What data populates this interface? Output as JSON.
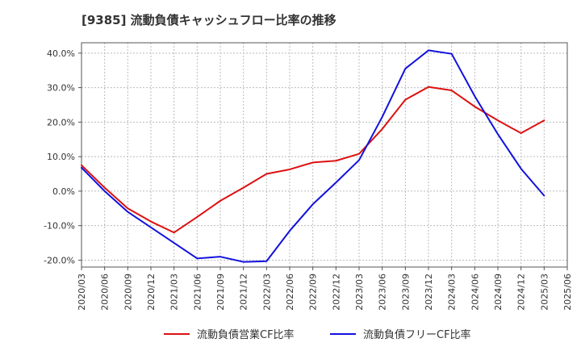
{
  "chart_data": {
    "type": "line",
    "title": "[9385]  流動負債キャッシュフロー比率の推移",
    "xlabel": "",
    "ylabel": "",
    "x": [
      "2020/03",
      "2020/06",
      "2020/09",
      "2020/12",
      "2021/03",
      "2021/06",
      "2021/09",
      "2021/12",
      "2022/03",
      "2022/06",
      "2022/09",
      "2022/12",
      "2023/03",
      "2023/06",
      "2023/09",
      "2023/12",
      "2024/03",
      "2024/06",
      "2024/09",
      "2024/12",
      "2025/03"
    ],
    "x_ticks": [
      "2020/03",
      "2020/06",
      "2020/09",
      "2020/12",
      "2021/03",
      "2021/06",
      "2021/09",
      "2021/12",
      "2022/03",
      "2022/06",
      "2022/09",
      "2022/12",
      "2023/03",
      "2023/06",
      "2023/09",
      "2023/12",
      "2024/03",
      "2024/06",
      "2024/09",
      "2024/12",
      "2025/03",
      "2025/06"
    ],
    "ylim": [
      -22,
      43
    ],
    "y_ticks": [
      -20,
      -10,
      0,
      10,
      20,
      30,
      40
    ],
    "y_tick_labels": [
      "-20.0%",
      "-10.0%",
      "0.0%",
      "10.0%",
      "20.0%",
      "30.0%",
      "40.0%"
    ],
    "grid": true,
    "legend_position": "bottom",
    "series": [
      {
        "name": "流動負債営業CF比率",
        "color": "#dd1111",
        "values": [
          7.5,
          1.0,
          -5.0,
          -8.8,
          -12.0,
          -7.5,
          -2.8,
          1.0,
          5.0,
          6.3,
          8.3,
          8.8,
          10.8,
          18.0,
          26.5,
          30.2,
          29.2,
          24.5,
          20.5,
          16.8,
          20.5
        ]
      },
      {
        "name": "流動負債フリーCF比率",
        "color": "#1111dd",
        "values": [
          6.8,
          0.0,
          -6.0,
          -10.5,
          -15.0,
          -19.5,
          -19.0,
          -20.5,
          -20.3,
          -11.5,
          -3.8,
          2.5,
          9.0,
          21.5,
          35.5,
          40.8,
          39.8,
          27.5,
          16.5,
          6.5,
          -1.3
        ]
      }
    ]
  }
}
